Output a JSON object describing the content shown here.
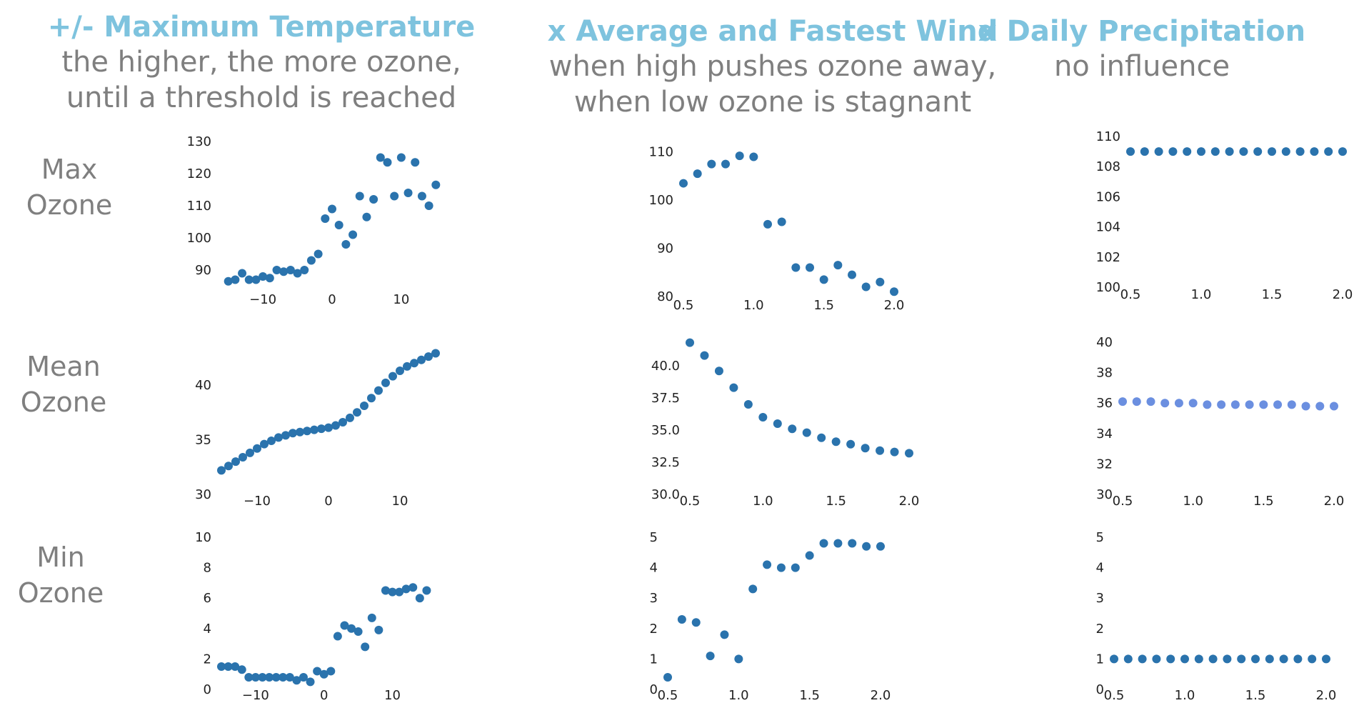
{
  "columns": [
    {
      "title": "+/- Maximum Temperature",
      "subtitle": [
        "the higher, the more ozone,",
        "until a threshold is reached"
      ]
    },
    {
      "title": "x Average and Fastest Wind",
      "subtitle": [
        "when high pushes ozone away,",
        "when low ozone is stagnant"
      ]
    },
    {
      "title": "x Daily Precipitation",
      "subtitle": [
        "no influence"
      ]
    }
  ],
  "rows": [
    {
      "label": [
        "Max",
        "Ozone"
      ]
    },
    {
      "label": [
        "Mean",
        "Ozone"
      ]
    },
    {
      "label": [
        "Min",
        "Ozone"
      ]
    }
  ],
  "colors": {
    "point": "#2a73ad",
    "point_light": "#6b8fe0",
    "title": "#7ec3de",
    "subtitle": "#7f7f7f"
  },
  "chart_data": [
    {
      "type": "scatter",
      "row": "Max Ozone",
      "column": "Maximum Temperature",
      "x": [
        -15,
        -14,
        -13,
        -12,
        -11,
        -10,
        -9,
        -8,
        -7,
        -6,
        -5,
        -4,
        -3,
        -2,
        -1,
        0,
        1,
        2,
        3,
        4,
        5,
        6,
        7,
        8,
        9,
        10,
        11,
        12,
        13,
        14,
        15
      ],
      "y": [
        86.5,
        87,
        89,
        87,
        87,
        88,
        87.5,
        90,
        89.5,
        90,
        89,
        90,
        93,
        95,
        106,
        109,
        104,
        98,
        101,
        113,
        106.5,
        112,
        125,
        123.5,
        113,
        125,
        114,
        123.5,
        113,
        110,
        116.5
      ],
      "xlim": [
        -16,
        16
      ],
      "ylim": [
        84,
        130
      ],
      "xticks": [
        -10,
        0,
        10
      ],
      "xticklabels": [
        "−10",
        "0",
        "10"
      ],
      "yticks": [
        90,
        100,
        110,
        120,
        130
      ],
      "yticklabels": [
        "90",
        "100",
        "110",
        "120",
        "130"
      ]
    },
    {
      "type": "scatter",
      "row": "Max Ozone",
      "column": "Average and Fastest Wind",
      "x": [
        0.5,
        0.6,
        0.7,
        0.8,
        0.9,
        1.0,
        1.1,
        1.2,
        1.3,
        1.4,
        1.5,
        1.6,
        1.7,
        1.8,
        1.9,
        2.0
      ],
      "y": [
        103.5,
        105.5,
        107.5,
        107.5,
        109.2,
        109,
        95,
        95.5,
        86,
        86,
        83.5,
        86.5,
        84.5,
        82,
        83,
        81
      ],
      "xlim": [
        0.5,
        2.0
      ],
      "ylim": [
        80,
        111
      ],
      "xticks": [
        0.5,
        1.0,
        1.5,
        2.0
      ],
      "xticklabels": [
        "0.5",
        "1.0",
        "1.5",
        "2.0"
      ],
      "yticks": [
        80,
        90,
        100,
        110
      ],
      "yticklabels": [
        "80",
        "90",
        "100",
        "110"
      ]
    },
    {
      "type": "scatter",
      "row": "Max Ozone",
      "column": "Daily Precipitation",
      "x": [
        0.5,
        0.6,
        0.7,
        0.8,
        0.9,
        1.0,
        1.1,
        1.2,
        1.3,
        1.4,
        1.5,
        1.6,
        1.7,
        1.8,
        1.9,
        2.0
      ],
      "y": [
        109,
        109,
        109,
        109,
        109,
        109,
        109,
        109,
        109,
        109,
        109,
        109,
        109,
        109,
        109,
        109
      ],
      "xlim": [
        0.5,
        2.0
      ],
      "ylim": [
        100,
        110
      ],
      "xticks": [
        0.5,
        1.0,
        1.5,
        2.0
      ],
      "xticklabels": [
        "0.5",
        "1.0",
        "1.5",
        "2.0"
      ],
      "yticks": [
        100,
        102,
        104,
        106,
        108,
        110
      ],
      "yticklabels": [
        "100",
        "102",
        "104",
        "106",
        "108",
        "110"
      ]
    },
    {
      "type": "scatter",
      "row": "Mean Ozone",
      "column": "Maximum Temperature",
      "x": [
        -15,
        -14,
        -13,
        -12,
        -11,
        -10,
        -9,
        -8,
        -7,
        -6,
        -5,
        -4,
        -3,
        -2,
        -1,
        0,
        1,
        2,
        3,
        4,
        5,
        6,
        7,
        8,
        9,
        10,
        11,
        12,
        13,
        14,
        15
      ],
      "y": [
        32.2,
        32.6,
        33.0,
        33.4,
        33.8,
        34.2,
        34.6,
        34.9,
        35.2,
        35.4,
        35.6,
        35.7,
        35.8,
        35.9,
        36.0,
        36.1,
        36.3,
        36.6,
        37.0,
        37.5,
        38.1,
        38.8,
        39.5,
        40.2,
        40.8,
        41.3,
        41.7,
        42.0,
        42.3,
        42.6,
        42.9
      ],
      "xlim": [
        -15,
        16
      ],
      "ylim": [
        30,
        43
      ],
      "xticks": [
        -10,
        0,
        10
      ],
      "xticklabels": [
        "−10",
        "0",
        "10"
      ],
      "yticks": [
        30,
        35,
        40
      ],
      "yticklabels": [
        "30",
        "35",
        "40"
      ]
    },
    {
      "type": "scatter",
      "row": "Mean Ozone",
      "column": "Average and Fastest Wind",
      "x": [
        0.5,
        0.6,
        0.7,
        0.8,
        0.9,
        1.0,
        1.1,
        1.2,
        1.3,
        1.4,
        1.5,
        1.6,
        1.7,
        1.8,
        1.9,
        2.0
      ],
      "y": [
        41.8,
        40.8,
        39.6,
        38.3,
        37.0,
        36.0,
        35.5,
        35.1,
        34.8,
        34.4,
        34.1,
        33.9,
        33.6,
        33.4,
        33.3,
        33.2
      ],
      "xlim": [
        0.5,
        2.0
      ],
      "ylim": [
        30,
        42
      ],
      "xticks": [
        0.5,
        1.0,
        1.5,
        2.0
      ],
      "xticklabels": [
        "0.5",
        "1.0",
        "1.5",
        "2.0"
      ],
      "yticks": [
        30,
        32.5,
        35,
        37.5,
        40
      ],
      "yticklabels": [
        "30.0",
        "32.5",
        "35.0",
        "37.5",
        "40.0"
      ]
    },
    {
      "type": "scatter",
      "row": "Mean Ozone",
      "column": "Daily Precipitation",
      "x": [
        0.5,
        0.6,
        0.7,
        0.8,
        0.9,
        1.0,
        1.1,
        1.2,
        1.3,
        1.4,
        1.5,
        1.6,
        1.7,
        1.8,
        1.9,
        2.0
      ],
      "y": [
        36.1,
        36.1,
        36.1,
        36.0,
        36.0,
        36.0,
        35.9,
        35.9,
        35.9,
        35.9,
        35.9,
        35.9,
        35.9,
        35.8,
        35.8,
        35.8
      ],
      "xlim": [
        0.5,
        2.0
      ],
      "ylim": [
        30,
        40
      ],
      "xticks": [
        0.5,
        1.0,
        1.5,
        2.0
      ],
      "xticklabels": [
        "0.5",
        "1.0",
        "1.5",
        "2.0"
      ],
      "yticks": [
        30,
        32,
        34,
        36,
        38,
        40
      ],
      "yticklabels": [
        "30",
        "32",
        "34",
        "36",
        "38",
        "40"
      ]
    },
    {
      "type": "scatter",
      "row": "Min Ozone",
      "column": "Maximum Temperature",
      "x": [
        -15,
        -14,
        -13,
        -12,
        -11,
        -10,
        -9,
        -8,
        -7,
        -6,
        -5,
        -4,
        -3,
        -2,
        -1,
        0,
        1,
        2,
        3,
        4,
        5,
        6,
        7,
        8,
        9,
        10,
        11,
        12,
        13,
        14,
        15
      ],
      "y": [
        1.5,
        1.5,
        1.5,
        1.3,
        0.8,
        0.8,
        0.8,
        0.8,
        0.8,
        0.8,
        0.8,
        0.6,
        0.8,
        0.5,
        1.2,
        1.0,
        1.2,
        3.5,
        4.2,
        4.0,
        3.8,
        2.8,
        4.7,
        3.9,
        6.5,
        6.4,
        6.4,
        6.6,
        6.7,
        6.0,
        6.5
      ],
      "xlim": [
        -15,
        16
      ],
      "ylim": [
        0,
        10
      ],
      "xticks": [
        -10,
        0,
        10
      ],
      "xticklabels": [
        "−10",
        "0",
        "10"
      ],
      "yticks": [
        0,
        2,
        4,
        6,
        8,
        10
      ],
      "yticklabels": [
        "0",
        "2",
        "4",
        "6",
        "8",
        "10"
      ]
    },
    {
      "type": "scatter",
      "row": "Min Ozone",
      "column": "Average and Fastest Wind",
      "x": [
        0.5,
        0.6,
        0.7,
        0.8,
        0.9,
        1.0,
        1.1,
        1.2,
        1.3,
        1.4,
        1.5,
        1.6,
        1.7,
        1.8,
        1.9,
        2.0
      ],
      "y": [
        0.4,
        2.3,
        2.2,
        1.1,
        1.8,
        1.0,
        3.3,
        4.1,
        4.0,
        4.0,
        4.4,
        4.8,
        4.8,
        4.8,
        4.7,
        4.7
      ],
      "xlim": [
        0.5,
        2.0
      ],
      "ylim": [
        0,
        5
      ],
      "xticks": [
        0.5,
        1.0,
        1.5,
        2.0
      ],
      "xticklabels": [
        "0.5",
        "1.0",
        "1.5",
        "2.0"
      ],
      "yticks": [
        0,
        1,
        2,
        3,
        4,
        5
      ],
      "yticklabels": [
        "0",
        "1",
        "2",
        "3",
        "4",
        "5"
      ]
    },
    {
      "type": "scatter",
      "row": "Min Ozone",
      "column": "Daily Precipitation",
      "x": [
        0.5,
        0.6,
        0.7,
        0.8,
        0.9,
        1.0,
        1.1,
        1.2,
        1.3,
        1.4,
        1.5,
        1.6,
        1.7,
        1.8,
        1.9,
        2.0
      ],
      "y": [
        1,
        1,
        1,
        1,
        1,
        1,
        1,
        1,
        1,
        1,
        1,
        1,
        1,
        1,
        1,
        1
      ],
      "xlim": [
        0.5,
        2.0
      ],
      "ylim": [
        0,
        5
      ],
      "xticks": [
        0.5,
        1.0,
        1.5,
        2.0
      ],
      "xticklabels": [
        "0.5",
        "1.0",
        "1.5",
        "2.0"
      ],
      "yticks": [
        0,
        1,
        2,
        3,
        4,
        5
      ],
      "yticklabels": [
        "0",
        "1",
        "2",
        "3",
        "4",
        "5"
      ]
    }
  ]
}
